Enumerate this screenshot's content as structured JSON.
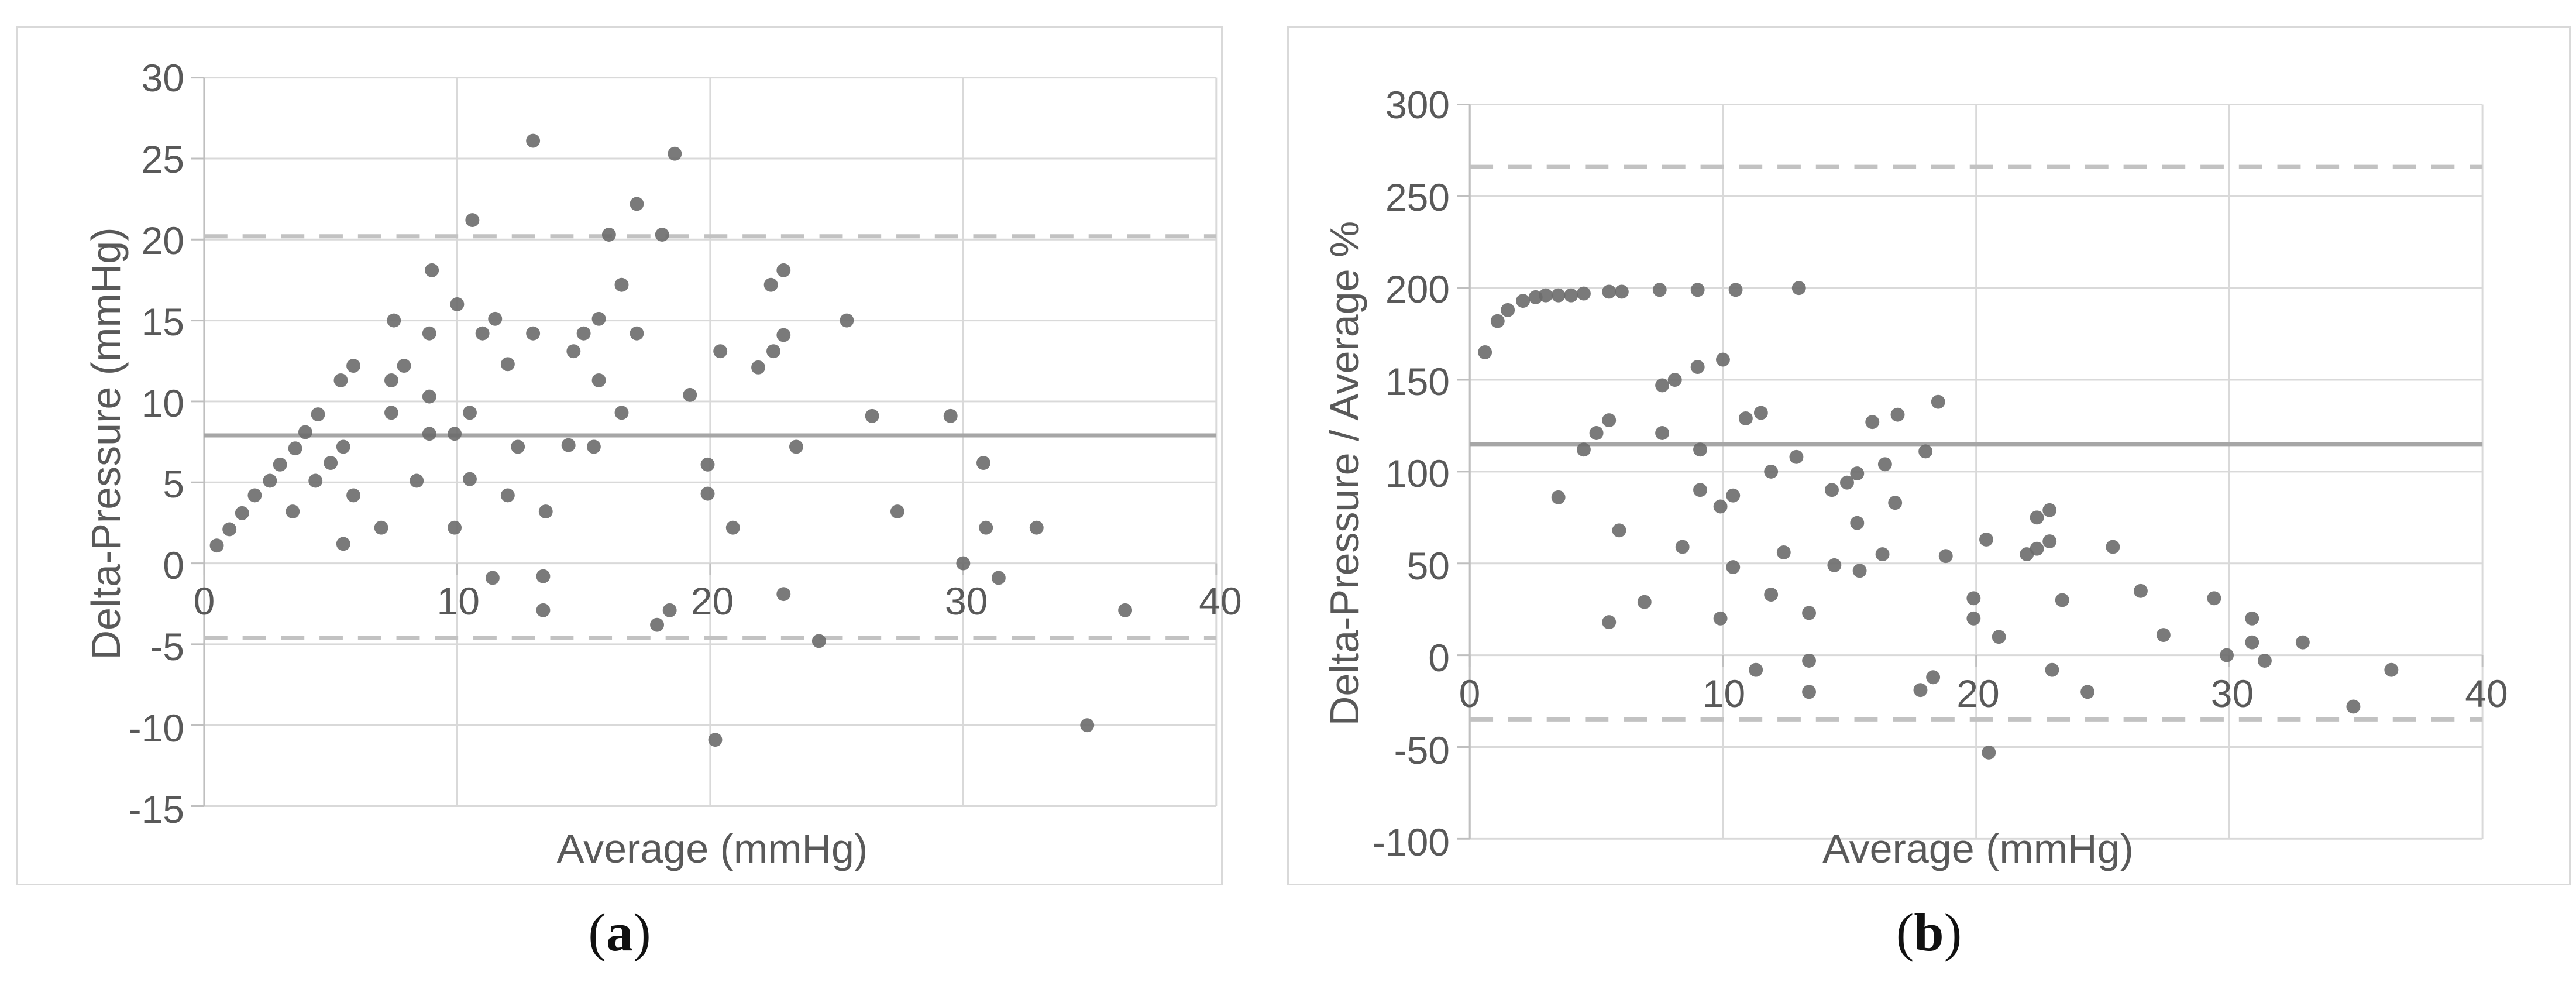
{
  "colors": {
    "marker": "#6b6b6b",
    "gridline": "#d9d9d9",
    "axis_line": "#bfbfbf",
    "mean_line": "#a6a6a6",
    "loa_dashed_line": "#c2c2c2",
    "tick_text": "#595959",
    "panel_border": "#d9d9d9",
    "background": "#ffffff"
  },
  "chart_data": [
    {
      "type": "scatter",
      "panel": "a",
      "caption": {
        "prefix": "(",
        "letter": "a",
        "suffix": ")"
      },
      "xlabel": "Average (mmHg)",
      "ylabel": "Delta-Pressure (mmHg)",
      "xlim": [
        0,
        40
      ],
      "ylim": [
        -15,
        30
      ],
      "xticks": [
        0,
        10,
        20,
        30,
        40
      ],
      "yticks": [
        30,
        25,
        20,
        15,
        10,
        5,
        0,
        -5,
        -10,
        -15
      ],
      "grid": true,
      "legend": "none",
      "mean_line": 7.9,
      "upper_loa": 20.2,
      "lower_loa": -4.6,
      "points": [
        [
          0.5,
          1.1
        ],
        [
          1.0,
          2.1
        ],
        [
          1.5,
          3.1
        ],
        [
          2.0,
          4.2
        ],
        [
          2.6,
          5.1
        ],
        [
          3.0,
          6.1
        ],
        [
          3.5,
          3.2
        ],
        [
          3.6,
          7.1
        ],
        [
          4.0,
          8.1
        ],
        [
          4.4,
          5.1
        ],
        [
          4.5,
          9.2
        ],
        [
          5.0,
          6.2
        ],
        [
          5.4,
          11.3
        ],
        [
          5.5,
          7.2
        ],
        [
          5.5,
          1.2
        ],
        [
          5.9,
          12.2
        ],
        [
          5.9,
          4.2
        ],
        [
          7.0,
          2.2
        ],
        [
          7.4,
          11.3
        ],
        [
          7.4,
          9.3
        ],
        [
          7.5,
          15.0
        ],
        [
          7.9,
          12.2
        ],
        [
          8.4,
          5.1
        ],
        [
          8.9,
          14.2
        ],
        [
          8.9,
          10.3
        ],
        [
          8.9,
          8.0
        ],
        [
          9.0,
          18.1
        ],
        [
          9.9,
          8.0
        ],
        [
          9.9,
          2.2
        ],
        [
          10.0,
          16.0
        ],
        [
          10.5,
          9.3
        ],
        [
          10.5,
          5.2
        ],
        [
          10.6,
          21.2
        ],
        [
          11.0,
          14.2
        ],
        [
          11.4,
          -0.9
        ],
        [
          11.5,
          15.1
        ],
        [
          12.0,
          12.3
        ],
        [
          12.0,
          4.2
        ],
        [
          12.4,
          7.2
        ],
        [
          13.0,
          26.1
        ],
        [
          13.0,
          14.2
        ],
        [
          13.4,
          -0.8
        ],
        [
          13.4,
          -2.9
        ],
        [
          13.5,
          3.2
        ],
        [
          14.4,
          7.3
        ],
        [
          14.6,
          13.1
        ],
        [
          15.0,
          14.2
        ],
        [
          15.4,
          7.2
        ],
        [
          15.6,
          15.1
        ],
        [
          15.6,
          11.3
        ],
        [
          16.0,
          20.3
        ],
        [
          16.5,
          17.2
        ],
        [
          16.5,
          9.3
        ],
        [
          17.1,
          22.2
        ],
        [
          17.1,
          14.2
        ],
        [
          17.9,
          -3.8
        ],
        [
          18.1,
          20.3
        ],
        [
          18.4,
          -2.9
        ],
        [
          18.6,
          25.3
        ],
        [
          19.2,
          10.4
        ],
        [
          19.9,
          6.1
        ],
        [
          19.9,
          4.3
        ],
        [
          20.2,
          -10.9
        ],
        [
          20.4,
          13.1
        ],
        [
          20.9,
          2.2
        ],
        [
          21.9,
          12.1
        ],
        [
          22.4,
          17.2
        ],
        [
          22.5,
          13.1
        ],
        [
          22.9,
          18.1
        ],
        [
          22.9,
          14.1
        ],
        [
          22.9,
          -1.9
        ],
        [
          23.4,
          7.2
        ],
        [
          24.3,
          -4.8
        ],
        [
          25.4,
          15.0
        ],
        [
          26.4,
          9.1
        ],
        [
          27.4,
          3.2
        ],
        [
          29.5,
          9.1
        ],
        [
          30.0,
          0.0
        ],
        [
          30.8,
          6.2
        ],
        [
          30.9,
          2.2
        ],
        [
          31.4,
          -0.9
        ],
        [
          32.9,
          2.2
        ],
        [
          34.9,
          -10.0
        ],
        [
          36.4,
          -2.9
        ]
      ]
    },
    {
      "type": "scatter",
      "panel": "b",
      "caption": {
        "prefix": "(",
        "letter": "b",
        "suffix": ")"
      },
      "xlabel": "Average (mmHg)",
      "ylabel": "Delta-Pressure / Average %",
      "xlim": [
        0,
        40
      ],
      "ylim": [
        -100,
        300
      ],
      "xticks": [
        0,
        10,
        20,
        30,
        40
      ],
      "yticks": [
        300,
        250,
        200,
        150,
        100,
        50,
        0,
        -50,
        -100
      ],
      "grid": true,
      "legend": "none",
      "mean_line": 115,
      "upper_loa": 266,
      "lower_loa": -35,
      "points": [
        [
          0.6,
          165
        ],
        [
          1.1,
          182
        ],
        [
          1.5,
          188
        ],
        [
          2.1,
          193
        ],
        [
          2.6,
          195
        ],
        [
          3.0,
          196
        ],
        [
          3.5,
          196
        ],
        [
          4.0,
          196
        ],
        [
          4.5,
          197
        ],
        [
          5.5,
          198
        ],
        [
          6.0,
          198
        ],
        [
          7.5,
          199
        ],
        [
          9.0,
          199
        ],
        [
          10.5,
          199
        ],
        [
          13.0,
          200
        ],
        [
          5.0,
          121
        ],
        [
          5.5,
          128
        ],
        [
          7.6,
          121
        ],
        [
          7.6,
          147
        ],
        [
          8.1,
          150
        ],
        [
          9.0,
          157
        ],
        [
          10.0,
          161
        ],
        [
          10.9,
          129
        ],
        [
          11.5,
          132
        ],
        [
          15.9,
          127
        ],
        [
          16.9,
          131
        ],
        [
          18.5,
          138
        ],
        [
          4.5,
          112
        ],
        [
          9.1,
          112
        ],
        [
          11.9,
          100
        ],
        [
          12.9,
          108
        ],
        [
          14.9,
          94
        ],
        [
          15.3,
          99
        ],
        [
          16.4,
          104
        ],
        [
          18.0,
          111
        ],
        [
          3.5,
          86
        ],
        [
          5.9,
          68
        ],
        [
          8.4,
          59
        ],
        [
          9.1,
          90
        ],
        [
          9.9,
          81
        ],
        [
          10.4,
          87
        ],
        [
          10.4,
          48
        ],
        [
          12.4,
          56
        ],
        [
          6.9,
          29
        ],
        [
          5.5,
          18
        ],
        [
          9.9,
          20
        ],
        [
          11.9,
          33
        ],
        [
          13.4,
          23
        ],
        [
          13.4,
          -3
        ],
        [
          13.4,
          -20
        ],
        [
          11.3,
          -8
        ],
        [
          14.3,
          90
        ],
        [
          14.4,
          49
        ],
        [
          15.3,
          72
        ],
        [
          15.4,
          46
        ],
        [
          16.3,
          55
        ],
        [
          16.8,
          83
        ],
        [
          18.3,
          -12
        ],
        [
          17.8,
          -19
        ],
        [
          18.8,
          54
        ],
        [
          19.9,
          31
        ],
        [
          19.9,
          20
        ],
        [
          20.4,
          63
        ],
        [
          20.5,
          -53
        ],
        [
          20.9,
          10
        ],
        [
          22.0,
          55
        ],
        [
          22.4,
          75
        ],
        [
          22.4,
          58
        ],
        [
          22.9,
          79
        ],
        [
          22.9,
          62
        ],
        [
          23.0,
          -8
        ],
        [
          23.4,
          30
        ],
        [
          24.4,
          -20
        ],
        [
          25.4,
          59
        ],
        [
          26.5,
          35
        ],
        [
          27.4,
          11
        ],
        [
          29.4,
          31
        ],
        [
          29.9,
          0
        ],
        [
          30.9,
          20
        ],
        [
          30.9,
          7
        ],
        [
          31.4,
          -3
        ],
        [
          32.9,
          7
        ],
        [
          34.9,
          -28
        ],
        [
          36.4,
          -8
        ]
      ]
    }
  ]
}
